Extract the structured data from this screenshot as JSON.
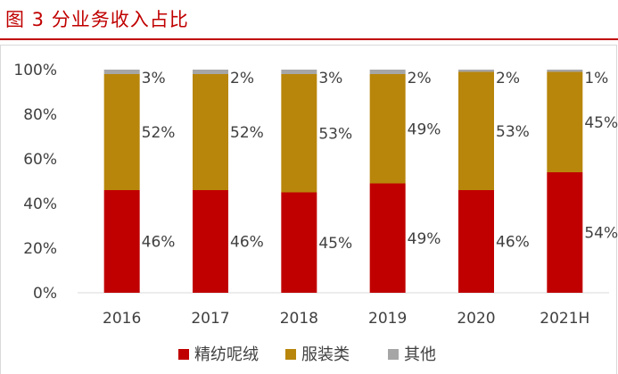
{
  "figure": {
    "title": "图 3 分业务收入占比"
  },
  "colors": {
    "title": "#c00000",
    "rule": "#c00000"
  },
  "chart_data": {
    "type": "bar",
    "stacked": true,
    "categories": [
      "2016",
      "2017",
      "2018",
      "2019",
      "2020",
      "2021H"
    ],
    "series": [
      {
        "name": "精纺呢绒",
        "color": "#c00000",
        "values": [
          46,
          46,
          45,
          49,
          46,
          54
        ],
        "labels": [
          "46%",
          "46%",
          "45%",
          "49%",
          "46%",
          "54%"
        ]
      },
      {
        "name": "服装类",
        "color": "#b8860b",
        "values": [
          52,
          52,
          53,
          49,
          53,
          45
        ],
        "labels": [
          "52%",
          "52%",
          "53%",
          "49%",
          "53%",
          "45%"
        ]
      },
      {
        "name": "其他",
        "color": "#a6a6a6",
        "values": [
          3,
          2,
          3,
          2,
          2,
          1
        ],
        "labels": [
          "3%",
          "2%",
          "3%",
          "2%",
          "2%",
          "1%"
        ]
      }
    ],
    "ylim": [
      0,
      100
    ],
    "yticks": [
      "0%",
      "20%",
      "40%",
      "60%",
      "80%",
      "100%"
    ],
    "grid": false,
    "legend": "bottom"
  }
}
